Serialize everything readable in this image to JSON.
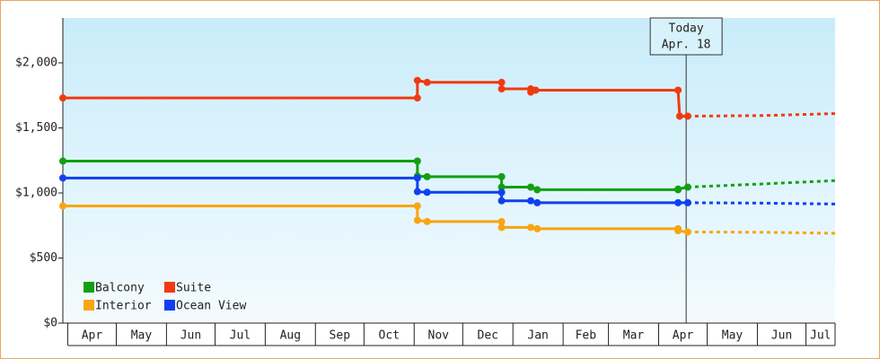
{
  "chart_data": {
    "type": "line",
    "ylim": [
      0,
      2345
    ],
    "yticks": [
      {
        "value": 0,
        "label": "$0"
      },
      {
        "value": 500,
        "label": "$500"
      },
      {
        "value": 1000,
        "label": "$1,000"
      },
      {
        "value": 1500,
        "label": "$1,500"
      },
      {
        "value": 2000,
        "label": "$2,000"
      }
    ],
    "xlim": [
      -3,
      474
    ],
    "xticks": [
      {
        "value": 0,
        "label": "Apr"
      },
      {
        "value": 30,
        "label": "May"
      },
      {
        "value": 61,
        "label": "Jun"
      },
      {
        "value": 91,
        "label": "Jul"
      },
      {
        "value": 122,
        "label": "Aug"
      },
      {
        "value": 153,
        "label": "Sep"
      },
      {
        "value": 183,
        "label": "Oct"
      },
      {
        "value": 214,
        "label": "Nov"
      },
      {
        "value": 244,
        "label": "Dec"
      },
      {
        "value": 275,
        "label": "Jan"
      },
      {
        "value": 306,
        "label": "Feb"
      },
      {
        "value": 334,
        "label": "Mar"
      },
      {
        "value": 365,
        "label": "Apr"
      },
      {
        "value": 395,
        "label": "May"
      },
      {
        "value": 426,
        "label": "Jun"
      },
      {
        "value": 456,
        "label": "Jul"
      }
    ],
    "today": {
      "x": 382,
      "title": "Today",
      "date": "Apr. 18"
    },
    "series": [
      {
        "name": "Balcony",
        "color": "#11a011",
        "x": [
          -3,
          216,
          216,
          222,
          268,
          268,
          286,
          290,
          377,
          377,
          383
        ],
        "values": [
          1245,
          1245,
          1130,
          1125,
          1125,
          1045,
          1045,
          1025,
          1025,
          1030,
          1045
        ],
        "forecast_x": [
          383,
          430,
          474
        ],
        "forecast_values": [
          1045,
          1070,
          1095
        ]
      },
      {
        "name": "Suite",
        "color": "#f03a10",
        "x": [
          -3,
          216,
          216,
          222,
          268,
          268,
          286,
          286,
          289,
          377,
          378,
          383
        ],
        "values": [
          1730,
          1730,
          1865,
          1850,
          1850,
          1800,
          1800,
          1775,
          1790,
          1790,
          1590,
          1590
        ],
        "forecast_x": [
          383,
          430,
          474
        ],
        "forecast_values": [
          1590,
          1595,
          1610
        ]
      },
      {
        "name": "Interior",
        "color": "#f8a510",
        "x": [
          -3,
          216,
          216,
          222,
          268,
          268,
          286,
          290,
          377,
          377,
          383
        ],
        "values": [
          900,
          900,
          790,
          780,
          780,
          735,
          735,
          725,
          725,
          710,
          700
        ],
        "forecast_x": [
          383,
          430,
          474
        ],
        "forecast_values": [
          700,
          698,
          690
        ]
      },
      {
        "name": "Ocean View",
        "color": "#1040f0",
        "x": [
          -3,
          216,
          216,
          222,
          268,
          268,
          286,
          290,
          377,
          383
        ],
        "values": [
          1115,
          1115,
          1010,
          1005,
          1005,
          940,
          940,
          925,
          925,
          925
        ],
        "forecast_x": [
          383,
          430,
          474
        ],
        "forecast_values": [
          925,
          922,
          915
        ]
      }
    ]
  }
}
